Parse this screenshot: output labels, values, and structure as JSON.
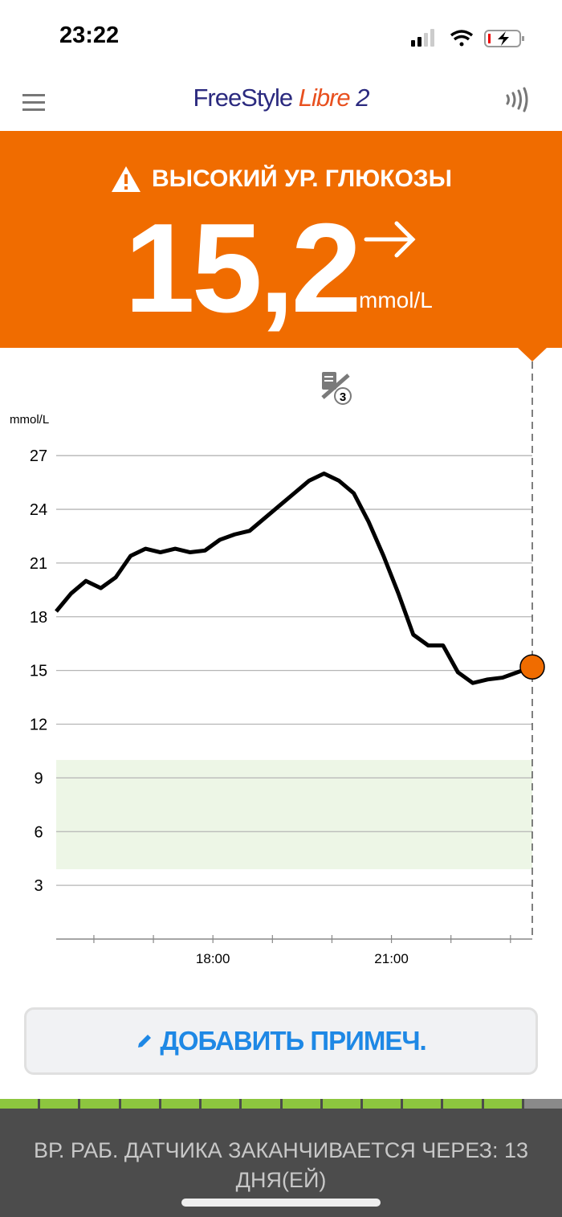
{
  "status_bar": {
    "time": "23:22",
    "signal_bars": 2,
    "battery": "charging-low"
  },
  "header": {
    "logo_freestyle": "FreeStyle",
    "logo_libre": "Libre",
    "logo_2": "2",
    "menu_icon": "hamburger-icon",
    "scan_icon": "nfc-icon"
  },
  "banner": {
    "alert": "ВЫСОКИЙ УР. ГЛЮКОЗЫ",
    "value": "15,2",
    "unit": "mmol/L",
    "trend": "steady-arrow-right",
    "color": "#f06c00"
  },
  "notes_icon": {
    "count": "3"
  },
  "chart_data": {
    "type": "line",
    "ylabel": "mmol/L",
    "ylim": [
      0,
      27
    ],
    "yticks": [
      27,
      24,
      21,
      18,
      15,
      12,
      9,
      6,
      3
    ],
    "xticks": [
      "18:00",
      "21:00"
    ],
    "xlim": [
      "15:22",
      "23:22"
    ],
    "target_range": [
      3.9,
      10
    ],
    "grid": true,
    "x": [
      "15:22",
      "15:37",
      "15:52",
      "16:07",
      "16:22",
      "16:37",
      "16:52",
      "17:07",
      "17:22",
      "17:37",
      "17:52",
      "18:07",
      "18:22",
      "18:37",
      "18:52",
      "19:07",
      "19:22",
      "19:37",
      "19:52",
      "20:07",
      "20:22",
      "20:37",
      "20:52",
      "21:07",
      "21:22",
      "21:37",
      "21:52",
      "22:07",
      "22:22",
      "22:37",
      "22:52",
      "23:07",
      "23:22"
    ],
    "values": [
      18.3,
      19.3,
      20.0,
      19.6,
      20.2,
      21.4,
      21.8,
      21.6,
      21.8,
      21.6,
      21.7,
      22.3,
      22.6,
      22.8,
      23.5,
      24.2,
      24.9,
      25.6,
      26.0,
      25.6,
      24.9,
      23.3,
      21.4,
      19.3,
      17.0,
      16.4,
      16.4,
      14.9,
      14.3,
      14.5,
      14.6,
      14.9,
      15.2
    ],
    "current_point_color": "#f06c00"
  },
  "add_note": {
    "label": "ДОБАВИТЬ ПРИМЕЧ."
  },
  "sensor": {
    "days_total": 14,
    "days_remaining": 13,
    "message": "ВР. РАБ. ДАТЧИКА ЗАКАНЧИВАЕТСЯ ЧЕРЕЗ: 13 ДНЯ(ЕЙ)"
  }
}
